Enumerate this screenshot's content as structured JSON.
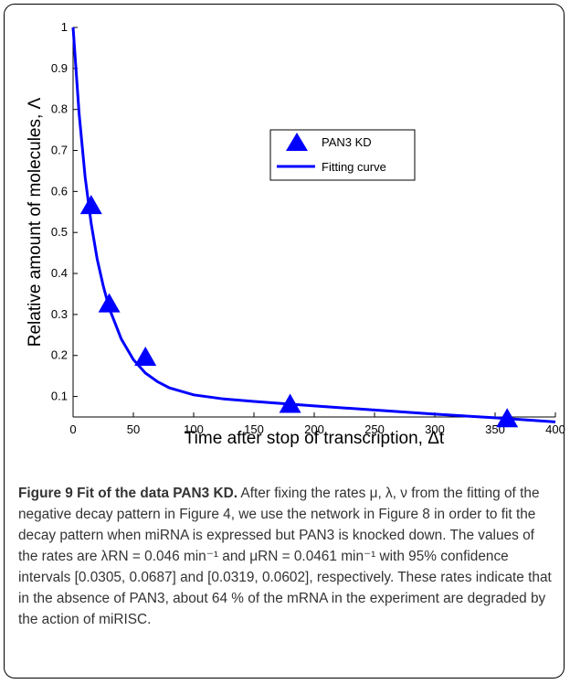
{
  "chart_data": {
    "type": "scatter",
    "xlabel": "Time after stop of transcription, Δt",
    "ylabel": "Relative amount of molecules, Λ",
    "xlim": [
      0,
      400
    ],
    "ylim": [
      0.05,
      1
    ],
    "xticks": [
      "0",
      "50",
      "100",
      "150",
      "200",
      "250",
      "300",
      "350",
      "400"
    ],
    "yticks": [
      "0.1",
      "0.2",
      "0.3",
      "0.4",
      "0.5",
      "0.6",
      "0.7",
      "0.8",
      "0.9",
      "1"
    ],
    "grid": false,
    "legend_position": "upper-right",
    "series": [
      {
        "name": "PAN3 KD",
        "kind": "markers",
        "marker": "triangle",
        "color": "#0000ff",
        "x": [
          15,
          30,
          60,
          180,
          360
        ],
        "y": [
          0.565,
          0.325,
          0.195,
          0.08,
          0.045
        ]
      },
      {
        "name": "Fitting curve",
        "kind": "line",
        "color": "#0000ff",
        "x": [
          0,
          5,
          10,
          15,
          20,
          25,
          30,
          40,
          50,
          60,
          70,
          80,
          100,
          125,
          150,
          200,
          250,
          300,
          350,
          400
        ],
        "y": [
          1.0,
          0.79,
          0.635,
          0.522,
          0.435,
          0.37,
          0.315,
          0.24,
          0.19,
          0.157,
          0.136,
          0.121,
          0.104,
          0.094,
          0.088,
          0.077,
          0.067,
          0.057,
          0.048,
          0.038
        ]
      }
    ]
  },
  "caption": {
    "title": "Figure 9 Fit of the data PAN3 KD.",
    "text": " After fixing the rates μ, λ, ν from the fitting of the negative decay pattern in Figure 4, we use the network in Figure 8 in order to fit the decay pattern when miRNA is expressed but PAN3 is knocked down. The values of the rates are λRN = 0.046 min⁻¹ and μRN = 0.0461 min⁻¹ with 95% confidence intervals [0.0305, 0.0687] and [0.0319, 0.0602], respectively. These rates indicate that in the absence of PAN3, about 64 % of the mRNA in the experiment are degraded by the action of miRISC."
  }
}
